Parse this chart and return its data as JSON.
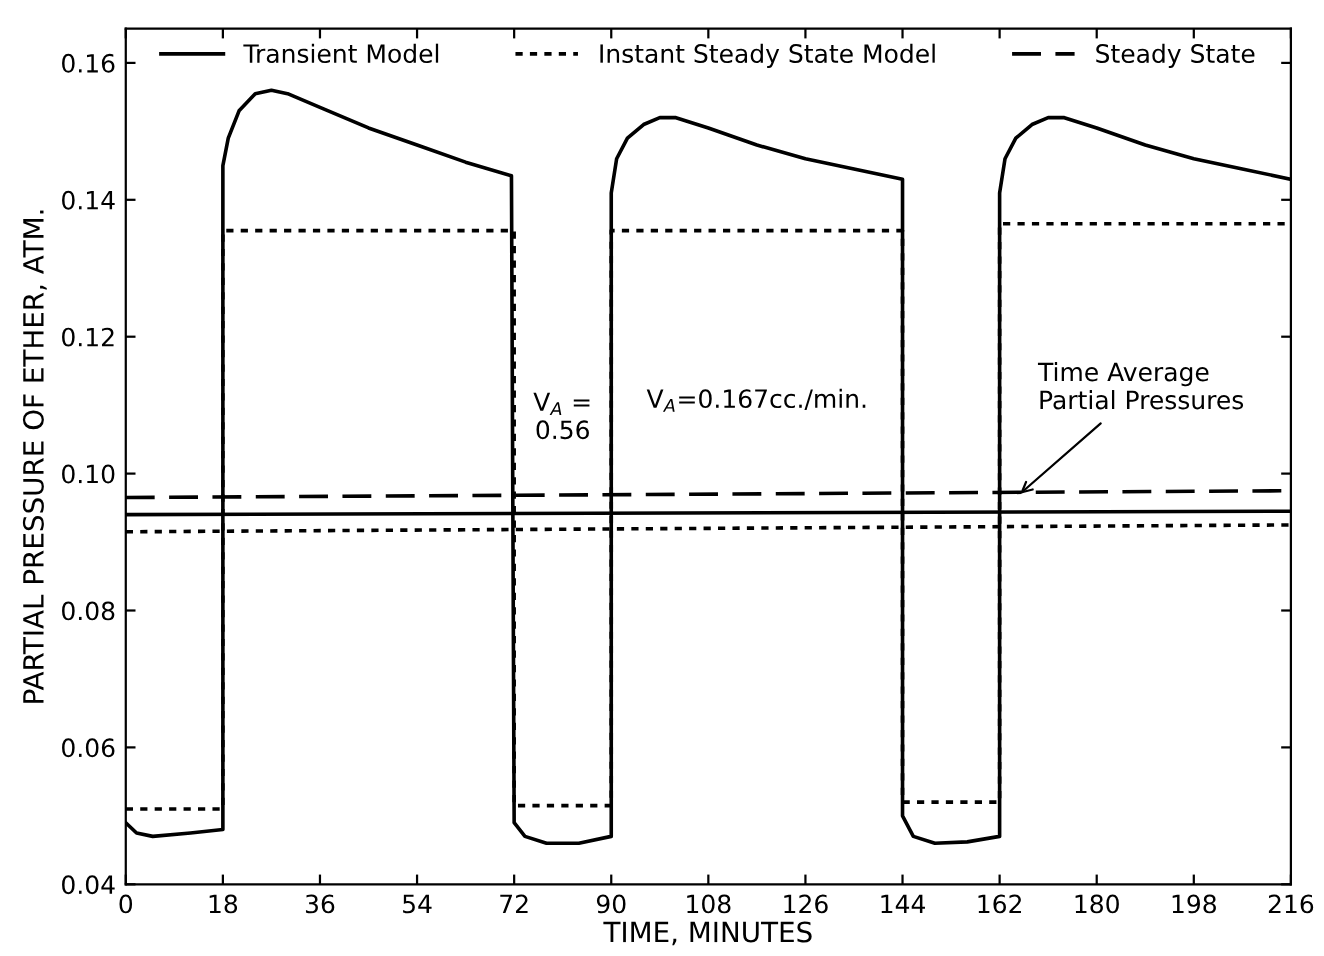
{
  "chart_data": {
    "type": "line",
    "xlabel": "TIME, MINUTES",
    "ylabel": "PARTIAL PRESSURE OF ETHER, ATM.",
    "series": [
      {
        "name": "Transient Model",
        "color": "#000000",
        "line_style": "solid",
        "x": [
          0,
          2,
          5,
          12,
          18,
          18,
          19,
          21,
          24,
          27,
          30,
          36,
          45,
          54,
          63,
          71.5,
          72,
          74,
          78,
          84,
          90,
          90,
          91,
          93,
          96,
          99,
          102,
          108,
          117,
          126,
          135,
          144,
          144,
          146,
          150,
          156,
          162,
          162,
          163,
          165,
          168,
          171,
          174,
          180,
          189,
          198,
          207,
          216
        ],
        "values": [
          0.049,
          0.0475,
          0.047,
          0.0475,
          0.048,
          0.145,
          0.149,
          0.153,
          0.1555,
          0.156,
          0.1555,
          0.1535,
          0.1505,
          0.148,
          0.1455,
          0.1435,
          0.049,
          0.047,
          0.046,
          0.046,
          0.047,
          0.141,
          0.146,
          0.149,
          0.151,
          0.152,
          0.152,
          0.1505,
          0.148,
          0.146,
          0.1445,
          0.143,
          0.05,
          0.047,
          0.046,
          0.0462,
          0.047,
          0.141,
          0.146,
          0.149,
          0.151,
          0.152,
          0.152,
          0.1505,
          0.148,
          0.146,
          0.1445,
          0.143
        ]
      },
      {
        "name": "Instant Steady State Model",
        "color": "#000000",
        "line_style": "dotted",
        "x": [
          0,
          18,
          18,
          72,
          72,
          90,
          90,
          144,
          144,
          162,
          162,
          216
        ],
        "values": [
          0.051,
          0.051,
          0.1355,
          0.1355,
          0.0515,
          0.0515,
          0.1355,
          0.1355,
          0.052,
          0.052,
          0.1365,
          0.1365
        ]
      },
      {
        "name": "Steady State",
        "color": "#000000",
        "line_style": "dashed",
        "x": [
          0,
          216
        ],
        "values": [
          0.0965,
          0.0975
        ]
      },
      {
        "color": "#000000",
        "line_style": "solid",
        "x": [
          0,
          216
        ],
        "values": [
          0.094,
          0.0945
        ]
      },
      {
        "color": "#000000",
        "line_style": "dotted",
        "x": [
          0,
          216
        ],
        "values": [
          0.0915,
          0.0925
        ]
      }
    ],
    "annotations": [
      "V$_{A}$ =\n0.56",
      "V$_{A}$=0.167cc./min.",
      {
        "text": "Time Average\nPartial Pressures",
        "x": 165,
        "y": 0.0965
      }
    ],
    "xlim": [
      0,
      216
    ],
    "xticks": [
      0,
      18,
      36,
      54,
      72,
      90,
      108,
      126,
      144,
      162,
      180,
      198,
      216
    ],
    "ylim": [
      0.04,
      0.165
    ],
    "yticks": [
      {
        "value": 0.04,
        "label": "0.04"
      },
      {
        "value": 0.06,
        "label": "0.06"
      },
      {
        "value": 0.08,
        "label": "0.08"
      },
      {
        "value": 0.1,
        "label": "0.10"
      },
      {
        "value": 0.12,
        "label": "0.12"
      },
      {
        "value": 0.14,
        "label": "0.14"
      },
      {
        "value": 0.16,
        "label": "0.16"
      }
    ],
    "legend": "top",
    "grid": false
  }
}
